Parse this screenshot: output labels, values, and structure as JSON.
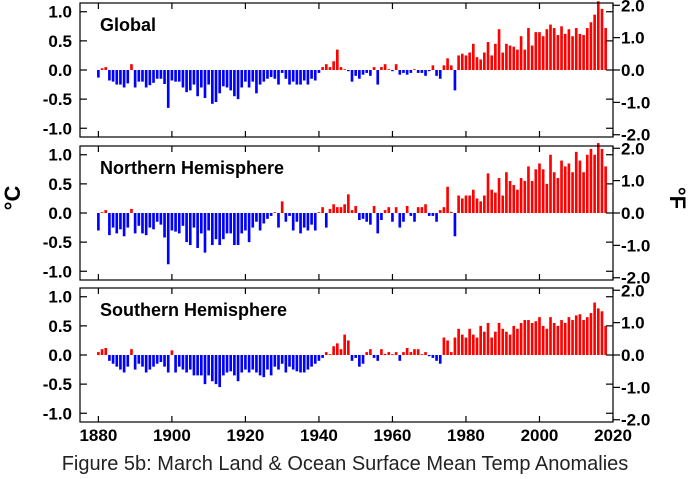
{
  "caption": "Figure 5b: March Land & Ocean Surface Mean Temp Anomalies",
  "chart_data": {
    "type": "bar",
    "x_ticks": [
      1880,
      1900,
      1920,
      1940,
      1960,
      1980,
      2000,
      2020
    ],
    "xlim": [
      1875,
      2020
    ],
    "ylabel_left": "°C",
    "ylabel_right": "°F",
    "left_ticks": [
      "1.0",
      "0.5",
      "0.0",
      "-0.5",
      "-1.0"
    ],
    "left_tick_values": [
      1.0,
      0.5,
      0.0,
      -0.5,
      -1.0
    ],
    "right_ticks": [
      "2.0",
      "1.0",
      "0.0",
      "-1.0",
      "-2.0"
    ],
    "right_tick_values_f": [
      2.0,
      1.0,
      0.0,
      -1.0,
      -2.0
    ],
    "ylim": [
      -1.15,
      1.15
    ],
    "positive_color": "#ff0000",
    "negative_color": "#0000ff",
    "panels": [
      {
        "title": "Global",
        "start_year": 1880,
        "values": [
          -0.13,
          0.03,
          0.05,
          -0.18,
          -0.2,
          -0.25,
          -0.25,
          -0.3,
          -0.23,
          0.1,
          -0.3,
          -0.2,
          -0.2,
          -0.3,
          -0.26,
          -0.22,
          -0.15,
          -0.15,
          -0.24,
          -0.65,
          -0.18,
          -0.2,
          -0.2,
          -0.3,
          -0.38,
          -0.35,
          -0.25,
          -0.45,
          -0.3,
          -0.48,
          -0.25,
          -0.58,
          -0.55,
          -0.4,
          -0.28,
          -0.3,
          -0.35,
          -0.45,
          -0.5,
          -0.3,
          -0.2,
          -0.3,
          -0.2,
          -0.4,
          -0.25,
          -0.2,
          -0.15,
          -0.12,
          -0.15,
          -0.25,
          -0.05,
          -0.15,
          -0.25,
          -0.2,
          -0.25,
          -0.25,
          -0.18,
          -0.25,
          -0.15,
          -0.18,
          -0.05,
          0.05,
          0.1,
          0.05,
          0.15,
          0.35,
          0.05,
          0.0,
          -0.02,
          -0.2,
          -0.1,
          -0.15,
          -0.08,
          -0.05,
          -0.1,
          0.05,
          -0.25,
          0.05,
          0.1,
          0.0,
          -0.02,
          0.1,
          -0.08,
          -0.05,
          -0.08,
          -0.05,
          0.0,
          -0.05,
          -0.05,
          -0.1,
          -0.02,
          0.08,
          -0.1,
          -0.15,
          0.08,
          0.2,
          0.08,
          -0.35,
          0.25,
          0.28,
          0.25,
          0.3,
          0.45,
          0.22,
          0.18,
          0.3,
          0.48,
          0.25,
          0.45,
          0.7,
          0.3,
          0.45,
          0.42,
          0.4,
          0.35,
          0.58,
          0.35,
          0.72,
          0.42,
          0.65,
          0.65,
          0.58,
          0.7,
          0.78,
          0.72,
          0.6,
          0.75,
          0.62,
          0.7,
          0.58,
          0.72,
          0.62,
          0.6,
          0.72,
          0.82,
          0.95,
          1.18,
          1.05,
          0.72
        ]
      },
      {
        "title": "Northern Hemisphere",
        "start_year": 1880,
        "values": [
          -0.3,
          0.0,
          0.05,
          -0.38,
          -0.25,
          -0.35,
          -0.28,
          -0.4,
          -0.25,
          0.07,
          -0.35,
          -0.22,
          -0.35,
          -0.38,
          -0.25,
          -0.28,
          -0.15,
          -0.2,
          -0.42,
          -0.88,
          -0.3,
          -0.32,
          -0.35,
          -0.22,
          -0.5,
          -0.55,
          -0.25,
          -0.6,
          -0.35,
          -0.68,
          -0.3,
          -0.55,
          -0.45,
          -0.55,
          -0.45,
          -0.35,
          -0.35,
          -0.55,
          -0.55,
          -0.35,
          -0.3,
          -0.5,
          -0.25,
          -0.15,
          -0.3,
          -0.18,
          -0.1,
          -0.05,
          0.0,
          -0.25,
          0.2,
          -0.15,
          -0.05,
          -0.3,
          -0.15,
          -0.35,
          -0.25,
          -0.3,
          -0.2,
          -0.3,
          0.0,
          0.1,
          -0.25,
          0.07,
          0.15,
          0.1,
          0.1,
          0.15,
          0.32,
          0.05,
          0.12,
          -0.12,
          -0.1,
          -0.15,
          -0.2,
          0.12,
          -0.35,
          -0.12,
          0.05,
          0.1,
          -0.15,
          0.1,
          -0.25,
          -0.15,
          0.12,
          -0.05,
          -0.15,
          0.1,
          0.1,
          0.15,
          -0.05,
          -0.05,
          -0.15,
          0.05,
          0.1,
          0.45,
          0.02,
          -0.4,
          0.3,
          0.25,
          0.3,
          0.3,
          0.4,
          0.25,
          0.2,
          0.3,
          0.68,
          0.4,
          0.35,
          0.6,
          0.3,
          0.7,
          0.55,
          0.48,
          0.4,
          0.6,
          0.55,
          0.8,
          0.55,
          0.75,
          0.85,
          0.75,
          0.5,
          1.0,
          0.7,
          0.6,
          0.9,
          0.8,
          0.85,
          0.7,
          1.05,
          0.9,
          0.7,
          1.0,
          1.1,
          1.0,
          1.2,
          1.1,
          0.8
        ]
      },
      {
        "title": "Southern Hemisphere",
        "start_year": 1880,
        "values": [
          0.05,
          0.1,
          0.12,
          -0.1,
          -0.15,
          -0.2,
          -0.25,
          -0.3,
          -0.2,
          0.1,
          -0.25,
          -0.15,
          -0.2,
          -0.3,
          -0.25,
          -0.2,
          -0.15,
          -0.12,
          -0.2,
          -0.3,
          0.08,
          -0.3,
          -0.2,
          -0.25,
          -0.3,
          -0.25,
          -0.35,
          -0.35,
          -0.35,
          -0.5,
          -0.35,
          -0.45,
          -0.5,
          -0.55,
          -0.35,
          -0.3,
          -0.28,
          -0.35,
          -0.45,
          -0.3,
          -0.25,
          -0.3,
          -0.25,
          -0.3,
          -0.35,
          -0.38,
          -0.25,
          -0.35,
          -0.2,
          -0.25,
          -0.15,
          -0.3,
          -0.2,
          -0.25,
          -0.28,
          -0.3,
          -0.3,
          -0.25,
          -0.2,
          -0.15,
          -0.1,
          -0.05,
          0.05,
          0.0,
          0.15,
          0.2,
          0.1,
          0.35,
          0.25,
          -0.1,
          -0.05,
          -0.2,
          -0.15,
          0.05,
          0.1,
          -0.05,
          -0.1,
          0.1,
          0.02,
          0.05,
          0.0,
          0.05,
          -0.1,
          0.05,
          0.12,
          0.05,
          0.1,
          0.1,
          0.0,
          0.05,
          -0.02,
          -0.05,
          -0.1,
          -0.15,
          0.3,
          0.25,
          0.05,
          0.3,
          0.45,
          0.35,
          0.3,
          0.45,
          0.35,
          0.3,
          0.5,
          0.4,
          0.55,
          0.3,
          0.4,
          0.55,
          0.45,
          0.4,
          0.35,
          0.5,
          0.45,
          0.55,
          0.6,
          0.6,
          0.55,
          0.58,
          0.65,
          0.5,
          0.45,
          0.65,
          0.55,
          0.5,
          0.6,
          0.55,
          0.65,
          0.6,
          0.68,
          0.7,
          0.6,
          0.65,
          0.72,
          0.9,
          0.8,
          0.75,
          0.5
        ]
      }
    ]
  }
}
